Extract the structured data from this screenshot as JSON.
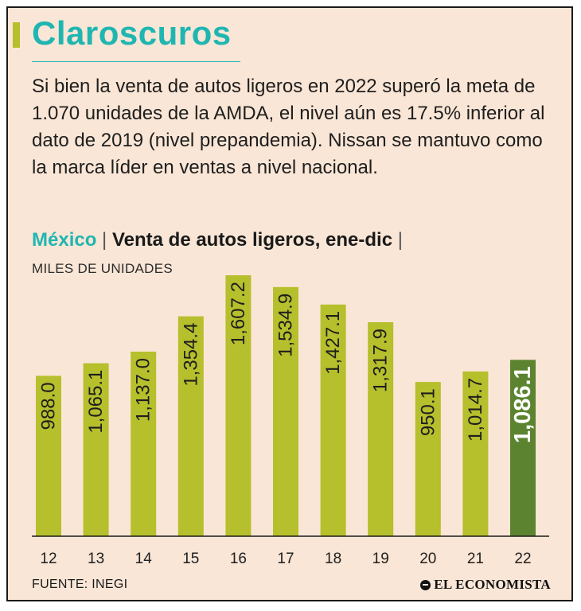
{
  "title": "Claroscuros",
  "description": "Si bien la venta de autos ligeros en 2022 superó la meta de 1.070 unidades de la AMDA, el nivel aún es 17.5% inferior al dato de 2019 (nivel prepandemia). Nissan se mantuvo como la marca líder en ventas a nivel nacional.",
  "subtitle": {
    "country": "México",
    "separator": "|",
    "text": "Venta de autos ligeros, ene-dic",
    "trailing_separator": "|"
  },
  "unit_label": "MILES DE UNIDADES",
  "source": "FUENTE: INEGI",
  "brand": "EL ECONOMISTA",
  "colors": {
    "bar": "#b6bf2c",
    "highlight_bar": "#5c8430",
    "accent": "#1fb6b1",
    "background": "#fae6d6"
  },
  "chart_data": {
    "type": "bar",
    "title": "Venta de autos ligeros, ene-dic",
    "ylabel": "MILES DE UNIDADES",
    "xlabel": "",
    "categories": [
      "12",
      "13",
      "14",
      "15",
      "16",
      "17",
      "18",
      "19",
      "20",
      "21",
      "22"
    ],
    "values": [
      988.0,
      1065.1,
      1137.0,
      1354.4,
      1607.2,
      1534.9,
      1427.1,
      1317.9,
      950.1,
      1014.7,
      1086.1
    ],
    "labels": [
      "988.0",
      "1,065.1",
      "1,137.0",
      "1,354.4",
      "1,607.2",
      "1,534.9",
      "1,427.1",
      "1,317.9",
      "950.1",
      "1,014.7",
      "1,086.1"
    ],
    "highlight_index": 10,
    "ylim": [
      0,
      1607.2
    ],
    "grid": false,
    "legend": "none"
  }
}
